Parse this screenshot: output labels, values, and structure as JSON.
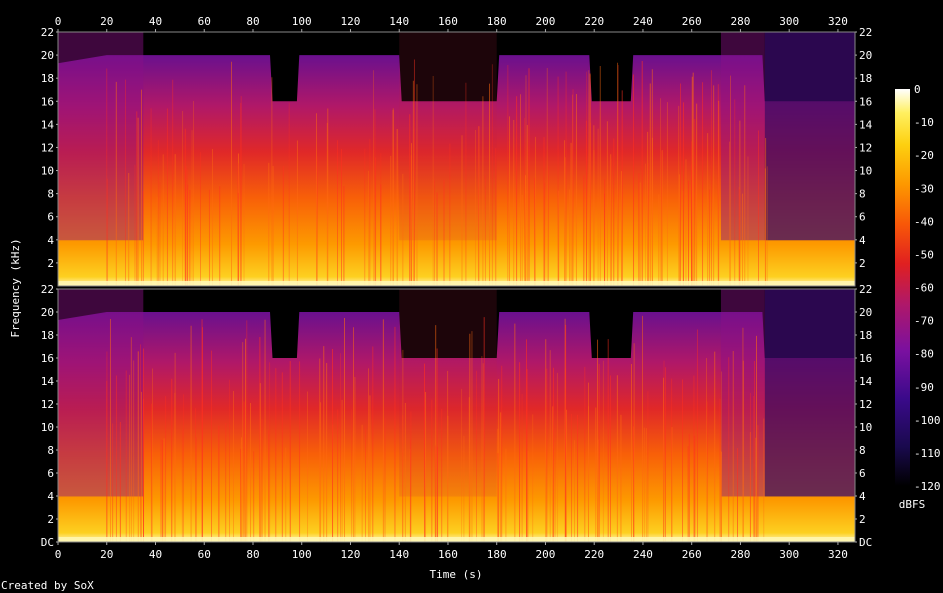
{
  "chart_data": {
    "type": "heatmap",
    "title": "",
    "xlabel": "Time (s)",
    "ylabel": "Frequency (kHz)",
    "xlim": [
      0,
      327
    ],
    "ylim": [
      0,
      22
    ],
    "x_ticks": [
      "0",
      "20",
      "40",
      "60",
      "80",
      "100",
      "120",
      "140",
      "160",
      "180",
      "200",
      "220",
      "240",
      "260",
      "280",
      "300",
      "320"
    ],
    "y_ticks": [
      "DC",
      "2",
      "4",
      "6",
      "8",
      "10",
      "12",
      "14",
      "16",
      "18",
      "20",
      "22"
    ],
    "y_ticks_top_panel": [
      "2",
      "4",
      "6",
      "8",
      "10",
      "12",
      "14",
      "16",
      "18",
      "20",
      "22"
    ],
    "colorbar": {
      "label": "dBFS",
      "ticks": [
        "0",
        "-10",
        "-20",
        "-30",
        "-40",
        "-50",
        "-60",
        "-70",
        "-80",
        "-90",
        "-100",
        "-110",
        "-120"
      ],
      "range": [
        -120,
        0
      ],
      "colors": [
        "#000000",
        "#1a0a4e",
        "#3a0a8a",
        "#7a10a0",
        "#b01868",
        "#e02020",
        "#f85808",
        "#fd9800",
        "#fdd010",
        "#fff060",
        "#ffffff"
      ]
    },
    "channels": [
      {
        "name": "",
        "cutoff_khz": [
          {
            "t": 0,
            "f": 19.3
          },
          {
            "t": 20,
            "f": 20
          },
          {
            "t": 35,
            "f": 20
          },
          {
            "t": 87,
            "f": 20
          },
          {
            "t": 88,
            "f": 16
          },
          {
            "t": 98,
            "f": 16
          },
          {
            "t": 99,
            "f": 20
          },
          {
            "t": 140,
            "f": 20
          },
          {
            "t": 141,
            "f": 16
          },
          {
            "t": 180,
            "f": 16
          },
          {
            "t": 181,
            "f": 20
          },
          {
            "t": 218,
            "f": 20
          },
          {
            "t": 219,
            "f": 16
          },
          {
            "t": 235,
            "f": 16
          },
          {
            "t": 236,
            "f": 20
          },
          {
            "t": 289,
            "f": 20
          },
          {
            "t": 290,
            "f": 16
          },
          {
            "t": 327,
            "f": 16
          }
        ]
      },
      {
        "name": "",
        "cutoff_khz": [
          {
            "t": 0,
            "f": 19.3
          },
          {
            "t": 20,
            "f": 20
          },
          {
            "t": 35,
            "f": 20
          },
          {
            "t": 87,
            "f": 20
          },
          {
            "t": 88,
            "f": 16
          },
          {
            "t": 98,
            "f": 16
          },
          {
            "t": 99,
            "f": 20
          },
          {
            "t": 140,
            "f": 20
          },
          {
            "t": 141,
            "f": 16
          },
          {
            "t": 180,
            "f": 16
          },
          {
            "t": 181,
            "f": 20
          },
          {
            "t": 218,
            "f": 20
          },
          {
            "t": 219,
            "f": 16
          },
          {
            "t": 235,
            "f": 16
          },
          {
            "t": 236,
            "f": 20
          },
          {
            "t": 289,
            "f": 20
          },
          {
            "t": 290,
            "f": 16
          },
          {
            "t": 327,
            "f": 16
          }
        ]
      }
    ],
    "loudness_segments": [
      {
        "t0": 0,
        "t1": 35,
        "level": -62
      },
      {
        "t0": 35,
        "t1": 140,
        "level": -42
      },
      {
        "t0": 140,
        "t1": 180,
        "level": -48
      },
      {
        "t0": 180,
        "t1": 272,
        "level": -42
      },
      {
        "t0": 272,
        "t1": 290,
        "level": -58
      },
      {
        "t0": 290,
        "t1": 327,
        "level": -85
      }
    ]
  },
  "footer": {
    "credit": "Created by SoX"
  }
}
